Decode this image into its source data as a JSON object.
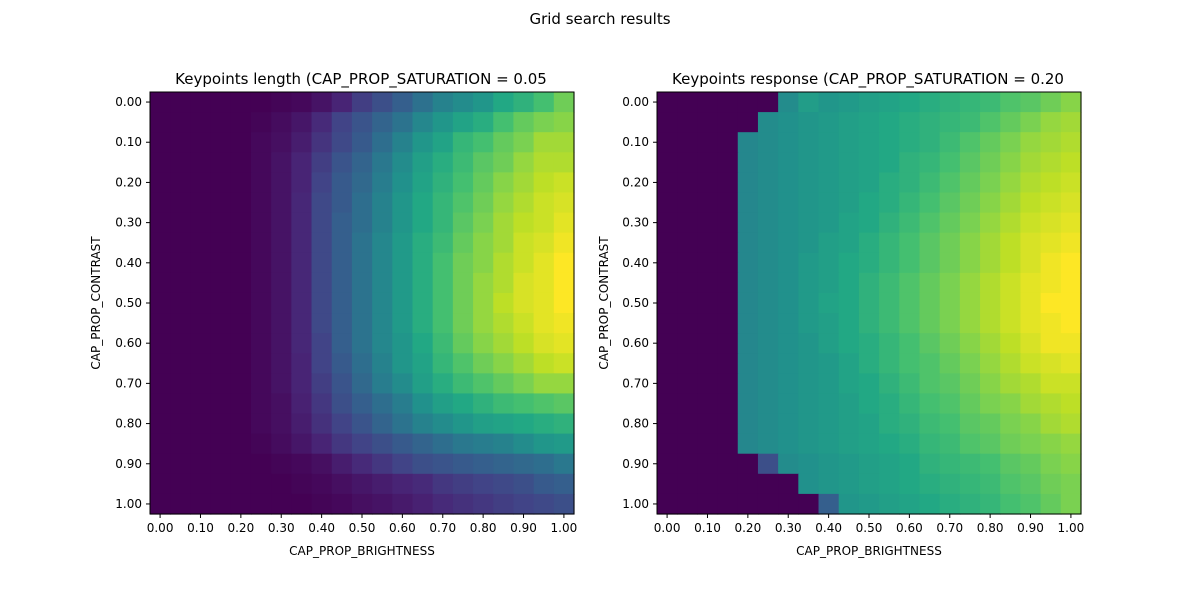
{
  "suptitle": "Grid search results",
  "colormap": "viridis",
  "chart_data": [
    {
      "type": "heatmap",
      "title": "Keypoints length (CAP_PROP_SATURATION = 0.05",
      "xlabel": "CAP_PROP_BRIGHTNESS",
      "ylabel": "CAP_PROP_CONTRAST",
      "xticklabels": [
        "0.00",
        "0.10",
        "0.20",
        "0.30",
        "0.40",
        "0.50",
        "0.60",
        "0.70",
        "0.80",
        "0.90",
        "1.00"
      ],
      "yticklabels": [
        "0.00",
        "0.10",
        "0.20",
        "0.30",
        "0.40",
        "0.50",
        "0.60",
        "0.70",
        "0.80",
        "0.90",
        "1.00"
      ],
      "x": [
        0.0,
        0.05,
        0.1,
        0.15,
        0.2,
        0.25,
        0.3,
        0.35,
        0.4,
        0.45,
        0.5,
        0.55,
        0.6,
        0.65,
        0.7,
        0.75,
        0.8,
        0.85,
        0.9,
        0.95,
        1.0
      ],
      "y": [
        0.0,
        0.05,
        0.1,
        0.15,
        0.2,
        0.25,
        0.3,
        0.35,
        0.4,
        0.45,
        0.5,
        0.55,
        0.6,
        0.65,
        0.7,
        0.75,
        0.8,
        0.85,
        0.9,
        0.95,
        1.0
      ],
      "z_scale": [
        0,
        1
      ],
      "z": [
        [
          0,
          0,
          0,
          0,
          0,
          0,
          0.01,
          0.02,
          0.05,
          0.1,
          0.18,
          0.24,
          0.3,
          0.37,
          0.44,
          0.48,
          0.52,
          0.6,
          0.64,
          0.7,
          0.78
        ],
        [
          0,
          0,
          0,
          0,
          0,
          0.01,
          0.03,
          0.06,
          0.12,
          0.2,
          0.26,
          0.32,
          0.38,
          0.46,
          0.52,
          0.58,
          0.62,
          0.7,
          0.76,
          0.8,
          0.82
        ],
        [
          0,
          0,
          0,
          0,
          0,
          0.02,
          0.04,
          0.08,
          0.15,
          0.22,
          0.28,
          0.36,
          0.44,
          0.52,
          0.58,
          0.66,
          0.7,
          0.76,
          0.8,
          0.86,
          0.86
        ],
        [
          0,
          0,
          0,
          0,
          0,
          0.02,
          0.05,
          0.1,
          0.18,
          0.26,
          0.32,
          0.4,
          0.48,
          0.56,
          0.62,
          0.68,
          0.74,
          0.78,
          0.84,
          0.88,
          0.88
        ],
        [
          0,
          0,
          0,
          0,
          0,
          0.02,
          0.05,
          0.1,
          0.2,
          0.28,
          0.34,
          0.42,
          0.5,
          0.58,
          0.64,
          0.7,
          0.76,
          0.82,
          0.86,
          0.9,
          0.92
        ],
        [
          0,
          0,
          0,
          0,
          0,
          0.02,
          0.05,
          0.11,
          0.22,
          0.28,
          0.36,
          0.44,
          0.52,
          0.6,
          0.66,
          0.72,
          0.78,
          0.84,
          0.88,
          0.92,
          0.94
        ],
        [
          0,
          0,
          0,
          0,
          0,
          0.02,
          0.05,
          0.11,
          0.22,
          0.3,
          0.36,
          0.44,
          0.52,
          0.6,
          0.66,
          0.74,
          0.8,
          0.86,
          0.9,
          0.92,
          0.96
        ],
        [
          0,
          0,
          0,
          0,
          0,
          0.02,
          0.05,
          0.11,
          0.22,
          0.3,
          0.38,
          0.46,
          0.54,
          0.62,
          0.68,
          0.76,
          0.82,
          0.86,
          0.92,
          0.94,
          0.98
        ],
        [
          0,
          0,
          0,
          0,
          0,
          0.02,
          0.05,
          0.11,
          0.22,
          0.3,
          0.38,
          0.46,
          0.54,
          0.62,
          0.7,
          0.78,
          0.82,
          0.88,
          0.92,
          0.96,
          1.0
        ],
        [
          0,
          0,
          0,
          0,
          0,
          0.02,
          0.05,
          0.11,
          0.22,
          0.3,
          0.38,
          0.46,
          0.54,
          0.62,
          0.7,
          0.78,
          0.84,
          0.88,
          0.94,
          0.96,
          1.0
        ],
        [
          0,
          0,
          0,
          0,
          0,
          0.02,
          0.05,
          0.11,
          0.22,
          0.3,
          0.38,
          0.46,
          0.54,
          0.62,
          0.7,
          0.78,
          0.84,
          0.9,
          0.94,
          0.96,
          1.0
        ],
        [
          0,
          0,
          0,
          0,
          0,
          0.02,
          0.05,
          0.11,
          0.22,
          0.3,
          0.38,
          0.46,
          0.54,
          0.62,
          0.7,
          0.78,
          0.84,
          0.88,
          0.92,
          0.96,
          0.98
        ],
        [
          0,
          0,
          0,
          0,
          0,
          0.02,
          0.05,
          0.11,
          0.2,
          0.3,
          0.38,
          0.46,
          0.52,
          0.6,
          0.68,
          0.76,
          0.82,
          0.86,
          0.9,
          0.94,
          0.96
        ],
        [
          0,
          0,
          0,
          0,
          0,
          0.02,
          0.05,
          0.1,
          0.2,
          0.28,
          0.36,
          0.44,
          0.52,
          0.58,
          0.66,
          0.72,
          0.78,
          0.82,
          0.86,
          0.9,
          0.92
        ],
        [
          0,
          0,
          0,
          0,
          0,
          0.02,
          0.05,
          0.1,
          0.18,
          0.26,
          0.34,
          0.42,
          0.48,
          0.56,
          0.62,
          0.68,
          0.72,
          0.76,
          0.8,
          0.84,
          0.84
        ],
        [
          0,
          0,
          0,
          0,
          0,
          0.02,
          0.04,
          0.09,
          0.16,
          0.24,
          0.3,
          0.36,
          0.42,
          0.5,
          0.56,
          0.6,
          0.64,
          0.68,
          0.7,
          0.72,
          0.74
        ],
        [
          0,
          0,
          0,
          0,
          0,
          0.02,
          0.04,
          0.08,
          0.14,
          0.2,
          0.26,
          0.32,
          0.38,
          0.44,
          0.48,
          0.52,
          0.56,
          0.58,
          0.6,
          0.62,
          0.64
        ],
        [
          0,
          0,
          0,
          0,
          0,
          0.01,
          0.03,
          0.06,
          0.1,
          0.16,
          0.2,
          0.24,
          0.28,
          0.32,
          0.36,
          0.4,
          0.42,
          0.44,
          0.48,
          0.52,
          0.54
        ],
        [
          0,
          0,
          0,
          0,
          0,
          0,
          0.01,
          0.02,
          0.04,
          0.08,
          0.12,
          0.16,
          0.2,
          0.24,
          0.26,
          0.28,
          0.3,
          0.32,
          0.34,
          0.36,
          0.4
        ],
        [
          0,
          0,
          0,
          0,
          0,
          0,
          0,
          0.01,
          0.02,
          0.04,
          0.06,
          0.08,
          0.1,
          0.12,
          0.16,
          0.18,
          0.2,
          0.22,
          0.24,
          0.28,
          0.3
        ],
        [
          0,
          0,
          0,
          0,
          0,
          0,
          0,
          0,
          0.01,
          0.02,
          0.04,
          0.05,
          0.07,
          0.09,
          0.12,
          0.14,
          0.16,
          0.18,
          0.2,
          0.22,
          0.24
        ]
      ]
    },
    {
      "type": "heatmap",
      "title": "Keypoints response (CAP_PROP_SATURATION = 0.20",
      "xlabel": "CAP_PROP_BRIGHTNESS",
      "ylabel": "CAP_PROP_CONTRAST",
      "xticklabels": [
        "0.00",
        "0.10",
        "0.20",
        "0.30",
        "0.40",
        "0.50",
        "0.60",
        "0.70",
        "0.80",
        "0.90",
        "1.00"
      ],
      "yticklabels": [
        "0.00",
        "0.10",
        "0.20",
        "0.30",
        "0.40",
        "0.50",
        "0.60",
        "0.70",
        "0.80",
        "0.90",
        "1.00"
      ],
      "x": [
        0.0,
        0.05,
        0.1,
        0.15,
        0.2,
        0.25,
        0.3,
        0.35,
        0.4,
        0.45,
        0.5,
        0.55,
        0.6,
        0.65,
        0.7,
        0.75,
        0.8,
        0.85,
        0.9,
        0.95,
        1.0
      ],
      "y": [
        0.0,
        0.05,
        0.1,
        0.15,
        0.2,
        0.25,
        0.3,
        0.35,
        0.4,
        0.45,
        0.5,
        0.55,
        0.6,
        0.65,
        0.7,
        0.75,
        0.8,
        0.85,
        0.9,
        0.95,
        1.0
      ],
      "z_scale": [
        0,
        1
      ],
      "z": [
        [
          0,
          0,
          0,
          0,
          0,
          0,
          0.48,
          0.55,
          0.52,
          0.54,
          0.56,
          0.58,
          0.6,
          0.62,
          0.64,
          0.66,
          0.68,
          0.72,
          0.74,
          0.78,
          0.82
        ],
        [
          0,
          0,
          0,
          0,
          0,
          0.48,
          0.5,
          0.52,
          0.54,
          0.56,
          0.58,
          0.6,
          0.62,
          0.64,
          0.66,
          0.68,
          0.72,
          0.76,
          0.8,
          0.84,
          0.86
        ],
        [
          0,
          0,
          0,
          0,
          0.46,
          0.48,
          0.5,
          0.52,
          0.54,
          0.56,
          0.58,
          0.6,
          0.62,
          0.64,
          0.68,
          0.72,
          0.76,
          0.8,
          0.84,
          0.86,
          0.88
        ],
        [
          0,
          0,
          0,
          0,
          0.46,
          0.48,
          0.5,
          0.52,
          0.54,
          0.56,
          0.58,
          0.6,
          0.64,
          0.66,
          0.7,
          0.74,
          0.78,
          0.82,
          0.86,
          0.88,
          0.9
        ],
        [
          0,
          0,
          0,
          0,
          0.46,
          0.48,
          0.5,
          0.52,
          0.54,
          0.56,
          0.58,
          0.62,
          0.64,
          0.68,
          0.72,
          0.76,
          0.8,
          0.84,
          0.88,
          0.9,
          0.92
        ],
        [
          0,
          0,
          0,
          0,
          0.46,
          0.48,
          0.5,
          0.52,
          0.54,
          0.56,
          0.6,
          0.62,
          0.66,
          0.7,
          0.74,
          0.78,
          0.82,
          0.86,
          0.9,
          0.92,
          0.94
        ],
        [
          0,
          0,
          0,
          0,
          0.46,
          0.48,
          0.5,
          0.52,
          0.54,
          0.58,
          0.6,
          0.64,
          0.68,
          0.72,
          0.76,
          0.8,
          0.84,
          0.88,
          0.92,
          0.94,
          0.96
        ],
        [
          0,
          0,
          0,
          0,
          0.46,
          0.48,
          0.5,
          0.52,
          0.56,
          0.58,
          0.62,
          0.66,
          0.7,
          0.74,
          0.78,
          0.82,
          0.86,
          0.9,
          0.94,
          0.96,
          0.98
        ],
        [
          0,
          0,
          0,
          0,
          0.46,
          0.48,
          0.5,
          0.54,
          0.56,
          0.6,
          0.62,
          0.66,
          0.7,
          0.74,
          0.78,
          0.82,
          0.86,
          0.9,
          0.94,
          0.98,
          1.0
        ],
        [
          0,
          0,
          0,
          0,
          0.46,
          0.48,
          0.5,
          0.54,
          0.56,
          0.6,
          0.64,
          0.68,
          0.72,
          0.76,
          0.8,
          0.84,
          0.88,
          0.92,
          0.96,
          0.98,
          1.0
        ],
        [
          0,
          0,
          0,
          0,
          0.46,
          0.48,
          0.5,
          0.54,
          0.58,
          0.6,
          0.64,
          0.68,
          0.72,
          0.76,
          0.8,
          0.84,
          0.88,
          0.92,
          0.96,
          1.0,
          1.0
        ],
        [
          0,
          0,
          0,
          0,
          0.46,
          0.48,
          0.5,
          0.54,
          0.56,
          0.6,
          0.64,
          0.68,
          0.72,
          0.76,
          0.8,
          0.84,
          0.88,
          0.92,
          0.96,
          0.98,
          1.0
        ],
        [
          0,
          0,
          0,
          0,
          0.46,
          0.48,
          0.5,
          0.52,
          0.56,
          0.6,
          0.62,
          0.66,
          0.7,
          0.74,
          0.78,
          0.82,
          0.86,
          0.9,
          0.94,
          0.98,
          0.98
        ],
        [
          0,
          0,
          0,
          0,
          0.46,
          0.48,
          0.5,
          0.52,
          0.54,
          0.58,
          0.62,
          0.66,
          0.7,
          0.72,
          0.76,
          0.8,
          0.84,
          0.88,
          0.92,
          0.94,
          0.96
        ],
        [
          0,
          0,
          0,
          0,
          0.46,
          0.48,
          0.5,
          0.52,
          0.54,
          0.58,
          0.6,
          0.64,
          0.68,
          0.72,
          0.74,
          0.78,
          0.82,
          0.86,
          0.88,
          0.92,
          0.92
        ],
        [
          0,
          0,
          0,
          0,
          0.46,
          0.48,
          0.5,
          0.52,
          0.54,
          0.56,
          0.6,
          0.62,
          0.66,
          0.7,
          0.72,
          0.76,
          0.8,
          0.82,
          0.86,
          0.88,
          0.9
        ],
        [
          0,
          0,
          0,
          0,
          0.46,
          0.48,
          0.5,
          0.52,
          0.54,
          0.56,
          0.58,
          0.62,
          0.64,
          0.68,
          0.7,
          0.74,
          0.76,
          0.8,
          0.82,
          0.86,
          0.88
        ],
        [
          0,
          0,
          0,
          0,
          0.46,
          0.48,
          0.5,
          0.52,
          0.54,
          0.56,
          0.58,
          0.6,
          0.62,
          0.66,
          0.68,
          0.72,
          0.74,
          0.78,
          0.8,
          0.82,
          0.84
        ],
        [
          0,
          0,
          0,
          0,
          0,
          0.24,
          0.48,
          0.5,
          0.52,
          0.54,
          0.56,
          0.58,
          0.6,
          0.64,
          0.66,
          0.68,
          0.7,
          0.74,
          0.76,
          0.8,
          0.82
        ],
        [
          0,
          0,
          0,
          0,
          0,
          0,
          0,
          0.5,
          0.52,
          0.54,
          0.56,
          0.58,
          0.6,
          0.62,
          0.64,
          0.66,
          0.68,
          0.72,
          0.74,
          0.78,
          0.8
        ],
        [
          0,
          0,
          0,
          0,
          0,
          0,
          0,
          0,
          0.3,
          0.52,
          0.54,
          0.56,
          0.58,
          0.6,
          0.62,
          0.64,
          0.66,
          0.7,
          0.72,
          0.76,
          0.8
        ]
      ]
    }
  ]
}
